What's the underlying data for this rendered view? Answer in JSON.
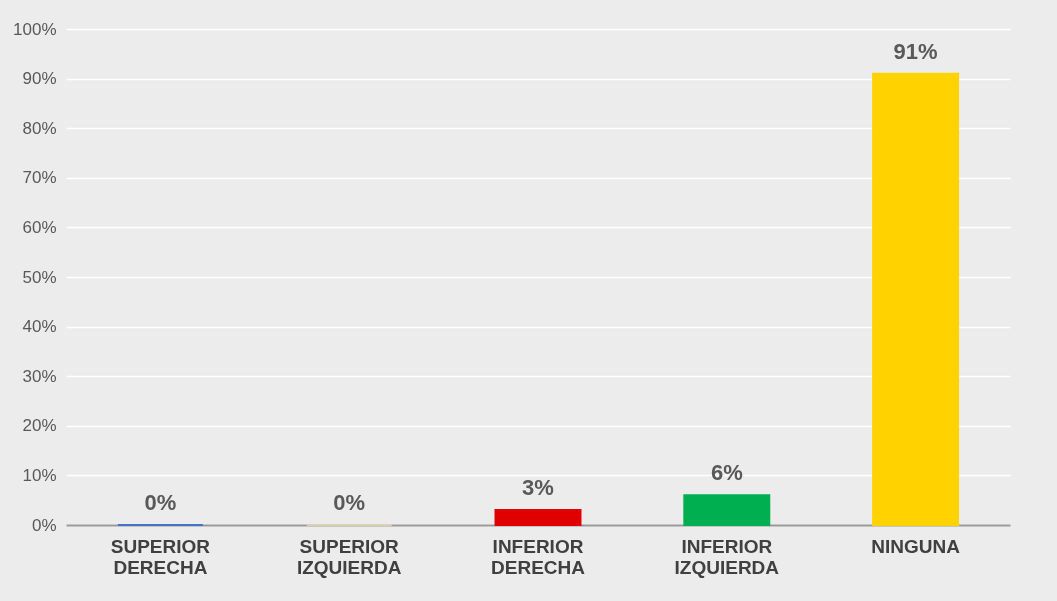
{
  "chart_data": {
    "type": "bar",
    "categories": [
      "SUPERIOR DERECHA",
      "SUPERIOR IZQUIERDA",
      "INFERIOR DERECHA",
      "INFERIOR IZQUIERDA",
      "NINGUNA"
    ],
    "values": [
      0,
      0,
      3,
      6,
      91
    ],
    "colors": [
      "#4472c4",
      "#ddd0b0",
      "#e00000",
      "#00b050",
      "#ffd200"
    ],
    "value_labels": [
      "0%",
      "0%",
      "3%",
      "6%",
      "91%"
    ],
    "ylim": [
      0,
      100
    ],
    "yticks": [
      {
        "value": 0,
        "label": "0%"
      },
      {
        "value": 10,
        "label": "10%"
      },
      {
        "value": 20,
        "label": "20%"
      },
      {
        "value": 30,
        "label": "30%"
      },
      {
        "value": 40,
        "label": "40%"
      },
      {
        "value": 50,
        "label": "50%"
      },
      {
        "value": 60,
        "label": "60%"
      },
      {
        "value": 70,
        "label": "70%"
      },
      {
        "value": 80,
        "label": "80%"
      },
      {
        "value": 90,
        "label": "90%"
      },
      {
        "value": 100,
        "label": "100%"
      }
    ],
    "grid": "y"
  }
}
